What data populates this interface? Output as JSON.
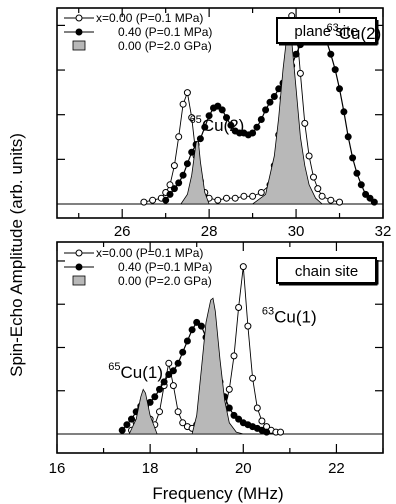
{
  "y_axis_title": "Spin-Echo Amplitude (arb. units)",
  "chart_data": [
    {
      "type": "line",
      "xlabel": "",
      "ylabel": "",
      "xlim": [
        24.5,
        32
      ],
      "x_ticks": [
        "26",
        "28",
        "30",
        "32"
      ],
      "ylim": [
        0,
        1
      ],
      "box_label": "plane site",
      "legend_placement": "top-left",
      "legend": [
        {
          "label": "x=0.00 (P=0.1 MPa)",
          "marker": "open-circle"
        },
        {
          "label": "0.40 (P=0.1 MPa)",
          "marker": "filled-circle"
        },
        {
          "label": "0.00 (P=2.0 GPa)",
          "marker": "gray-fill"
        }
      ],
      "annotations": [
        {
          "sup": "65",
          "text": "Cu(2)",
          "x": 27.55,
          "y": 0.38
        },
        {
          "sup": "63",
          "text": "Cu(2)",
          "x": 30.7,
          "y": 0.86
        }
      ],
      "series": [
        {
          "name": "x=0.00 (P=0.1 MPa)",
          "style": "open-circle",
          "x": [
            26.5,
            26.7,
            26.9,
            27.0,
            27.1,
            27.2,
            27.3,
            27.4,
            27.5,
            27.6,
            27.7,
            27.8,
            27.9,
            28.0,
            28.2,
            28.4,
            28.6,
            28.8,
            29.0,
            29.2,
            29.4,
            29.5,
            29.6,
            29.7,
            29.8,
            29.9,
            30.0,
            30.1,
            30.2,
            30.3,
            30.4,
            30.5,
            30.6,
            30.8,
            31.0
          ],
          "y": [
            0.01,
            0.02,
            0.03,
            0.06,
            0.1,
            0.2,
            0.35,
            0.52,
            0.58,
            0.45,
            0.25,
            0.12,
            0.06,
            0.03,
            0.02,
            0.03,
            0.03,
            0.04,
            0.04,
            0.06,
            0.1,
            0.2,
            0.36,
            0.55,
            0.72,
            0.98,
            0.94,
            0.68,
            0.42,
            0.25,
            0.14,
            0.08,
            0.04,
            0.02,
            0.01
          ]
        },
        {
          "name": "0.40 (P=0.1 MPa)",
          "style": "filled-circle",
          "x": [
            27.0,
            27.1,
            27.2,
            27.3,
            27.4,
            27.5,
            27.6,
            27.7,
            27.8,
            27.9,
            28.0,
            28.1,
            28.2,
            28.3,
            28.4,
            28.5,
            28.6,
            28.7,
            28.8,
            28.9,
            29.0,
            29.1,
            29.2,
            29.3,
            29.4,
            29.5,
            29.6,
            29.7,
            29.8,
            29.9,
            30.0,
            30.1,
            30.2,
            30.3,
            30.4,
            30.5,
            30.6,
            30.7,
            30.8,
            30.9,
            31.0,
            31.1,
            31.2,
            31.3,
            31.4,
            31.5,
            31.6,
            31.7,
            31.8
          ],
          "y": [
            0.02,
            0.05,
            0.08,
            0.11,
            0.15,
            0.21,
            0.27,
            0.31,
            0.34,
            0.4,
            0.46,
            0.5,
            0.51,
            0.49,
            0.45,
            0.41,
            0.38,
            0.37,
            0.37,
            0.36,
            0.37,
            0.4,
            0.44,
            0.49,
            0.53,
            0.56,
            0.6,
            0.63,
            0.66,
            0.72,
            0.78,
            0.83,
            0.86,
            0.88,
            0.89,
            0.9,
            0.88,
            0.85,
            0.78,
            0.7,
            0.6,
            0.48,
            0.35,
            0.24,
            0.16,
            0.1,
            0.05,
            0.03,
            0.01
          ]
        },
        {
          "name": "0.00 (P=2.0 GPa)",
          "style": "gray-fill",
          "x": [
            27.35,
            27.5,
            27.6,
            27.7,
            27.75,
            27.8,
            27.9,
            28.0,
            29.0,
            29.3,
            29.5,
            29.6,
            29.7,
            29.8,
            29.85,
            29.9,
            30.0,
            30.1,
            30.2,
            30.3,
            30.45,
            30.6
          ],
          "y": [
            0,
            0.05,
            0.15,
            0.32,
            0.33,
            0.22,
            0.06,
            0,
            0,
            0.05,
            0.25,
            0.45,
            0.7,
            0.9,
            0.91,
            0.85,
            0.6,
            0.35,
            0.2,
            0.1,
            0.03,
            0
          ]
        }
      ]
    },
    {
      "type": "line",
      "xlabel": "Frequency (MHz)",
      "ylabel": "",
      "xlim": [
        16,
        23
      ],
      "x_ticks": [
        "16",
        "18",
        "20",
        "22"
      ],
      "ylim": [
        0,
        1
      ],
      "box_label": "chain site",
      "legend_placement": "top-left",
      "legend": [
        {
          "label": "x=0.00 (P=0.1 MPa)",
          "marker": "open-circle"
        },
        {
          "label": "0.40 (P=0.1 MPa)",
          "marker": "filled-circle"
        },
        {
          "label": "0.00 (P=2.0 GPa)",
          "marker": "gray-fill"
        }
      ],
      "annotations": [
        {
          "sup": "65",
          "text": "Cu(1)",
          "x": 17.1,
          "y": 0.3
        },
        {
          "sup": "63",
          "text": "Cu(1)",
          "x": 20.4,
          "y": 0.6
        }
      ],
      "series": [
        {
          "name": "x=0.00 (P=0.1 MPa)",
          "style": "open-circle",
          "x": [
            17.6,
            17.7,
            17.8,
            17.85,
            17.9,
            18.0,
            18.1,
            18.2,
            18.3,
            18.4,
            18.5,
            18.6,
            18.7,
            18.8,
            18.9,
            19.0,
            19.1,
            19.2,
            19.3,
            19.4,
            19.5,
            19.6,
            19.7,
            19.8,
            19.9,
            20.0,
            20.1,
            20.2,
            20.3,
            20.4,
            20.5,
            20.6,
            20.7,
            20.8
          ],
          "y": [
            0.02,
            0.06,
            0.14,
            0.18,
            0.15,
            0.08,
            0.05,
            0.12,
            0.26,
            0.38,
            0.26,
            0.12,
            0.06,
            0.04,
            0.03,
            0.05,
            0.1,
            0.16,
            0.17,
            0.14,
            0.1,
            0.13,
            0.24,
            0.42,
            0.68,
            0.9,
            0.58,
            0.3,
            0.14,
            0.07,
            0.04,
            0.02,
            0.01,
            0.01
          ]
        },
        {
          "name": "0.40 (P=0.1 MPa)",
          "style": "filled-circle",
          "x": [
            17.4,
            17.5,
            17.6,
            17.7,
            17.8,
            17.9,
            18.0,
            18.1,
            18.2,
            18.3,
            18.4,
            18.5,
            18.6,
            18.7,
            18.8,
            18.9,
            19.0,
            19.1,
            19.2,
            19.3,
            19.4,
            19.5,
            19.6,
            19.7,
            19.8,
            19.9,
            20.0,
            20.1,
            20.2,
            20.3,
            20.4,
            20.5
          ],
          "y": [
            0.02,
            0.05,
            0.08,
            0.12,
            0.15,
            0.16,
            0.17,
            0.2,
            0.24,
            0.28,
            0.32,
            0.34,
            0.38,
            0.44,
            0.5,
            0.56,
            0.6,
            0.58,
            0.52,
            0.44,
            0.36,
            0.28,
            0.2,
            0.14,
            0.1,
            0.08,
            0.06,
            0.05,
            0.04,
            0.03,
            0.02,
            0.01
          ]
        },
        {
          "name": "0.00 (P=2.0 GPa)",
          "style": "gray-fill",
          "x": [
            17.55,
            17.7,
            17.8,
            17.85,
            17.9,
            18.0,
            18.15,
            18.9,
            19.0,
            19.1,
            19.2,
            19.3,
            19.35,
            19.4,
            19.5,
            19.6,
            19.7,
            19.85,
            20.0
          ],
          "y": [
            0,
            0.08,
            0.2,
            0.24,
            0.22,
            0.1,
            0,
            0,
            0.1,
            0.35,
            0.6,
            0.72,
            0.73,
            0.66,
            0.4,
            0.18,
            0.06,
            0.01,
            0
          ]
        }
      ]
    }
  ]
}
